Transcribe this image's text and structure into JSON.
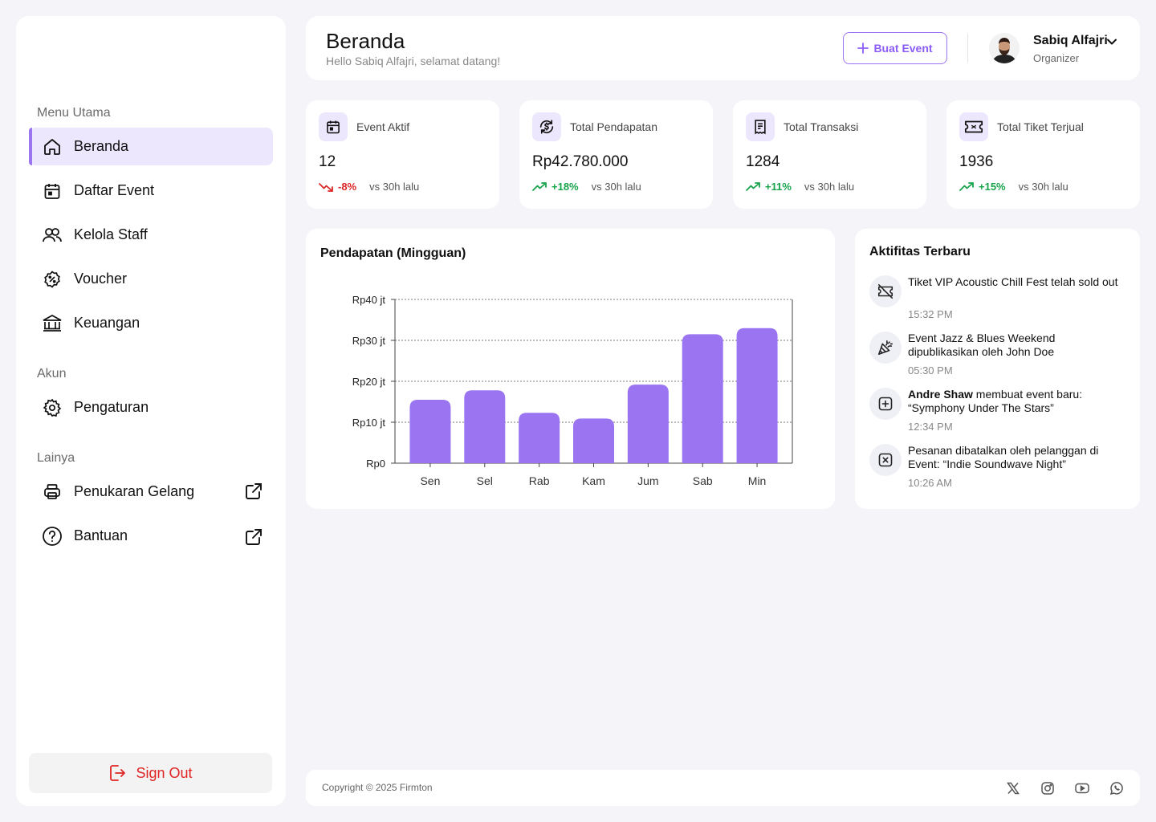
{
  "sidebar": {
    "sections": {
      "main": "Menu Utama",
      "account": "Akun",
      "other": "Lainya"
    },
    "items": [
      {
        "label": "Beranda",
        "icon": "home-icon",
        "active": true
      },
      {
        "label": "Daftar Event",
        "icon": "calendar-icon"
      },
      {
        "label": "Kelola Staff",
        "icon": "users-icon"
      },
      {
        "label": "Voucher",
        "icon": "discount-badge-icon"
      },
      {
        "label": "Keuangan",
        "icon": "bank-icon"
      },
      {
        "label": "Pengaturan",
        "icon": "gear-icon"
      },
      {
        "label": "Penukaran Gelang",
        "icon": "printer-icon",
        "external": true
      },
      {
        "label": "Bantuan",
        "icon": "help-circle-icon",
        "external": true
      }
    ],
    "signout": "Sign Out"
  },
  "header": {
    "title": "Beranda",
    "greeting": "Hello Sabiq Alfajri, selamat datang!",
    "create_label": "Buat Event",
    "user_name": "Sabiq Alfajri",
    "user_role": "Organizer"
  },
  "stats": [
    {
      "label": "Event Aktif",
      "value": "12",
      "change": "-8%",
      "direction": "down",
      "compare": "vs 30h lalu",
      "icon": "calendar-icon"
    },
    {
      "label": "Total Pendapatan",
      "value": "Rp42.780.000",
      "change": "+18%",
      "direction": "up",
      "compare": "vs 30h lalu",
      "icon": "money-cycle-icon"
    },
    {
      "label": "Total Transaksi",
      "value": "1284",
      "change": "+11%",
      "direction": "up",
      "compare": "vs 30h lalu",
      "icon": "receipt-icon"
    },
    {
      "label": "Total Tiket Terjual",
      "value": "1936",
      "change": "+15%",
      "direction": "up",
      "compare": "vs 30h lalu",
      "icon": "ticket-icon"
    }
  ],
  "chart_data": {
    "type": "bar",
    "title": "Pendapatan (Mingguan)",
    "categories": [
      "Sen",
      "Sel",
      "Rab",
      "Kam",
      "Jum",
      "Sab",
      "Min"
    ],
    "values": [
      15.5,
      17.8,
      12.3,
      10.9,
      19.2,
      31.5,
      33
    ],
    "yticks": [
      0,
      10,
      20,
      30,
      40
    ],
    "ytick_labels": [
      "Rp0",
      "Rp10 jt",
      "Rp20 jt",
      "Rp30 jt",
      "Rp40 jt"
    ],
    "ylim": [
      0,
      40
    ],
    "grid": true,
    "color": "#9b74f2"
  },
  "activity": {
    "title": "Aktifitas Terbaru",
    "items": [
      {
        "icon": "ticket-off-icon",
        "bold": "",
        "text": "Tiket VIP Acoustic Chill Fest telah sold out",
        "time": "15:32 PM"
      },
      {
        "icon": "party-popper-icon",
        "bold": "",
        "text": "Event Jazz & Blues Weekend dipublikasikan oleh John Doe",
        "time": "05:30 PM"
      },
      {
        "icon": "plus-square-icon",
        "bold": "Andre Shaw",
        "text": " membuat event baru: “Symphony Under The Stars”",
        "time": "12:34 PM"
      },
      {
        "icon": "x-square-icon",
        "bold": "",
        "text": "Pesanan dibatalkan oleh pelanggan di Event: “Indie Soundwave Night”",
        "time": "10:26 AM"
      }
    ]
  },
  "footer": {
    "copyright": "Copyright © 2025 Firmton",
    "social": [
      "x-icon",
      "instagram-icon",
      "youtube-icon",
      "whatsapp-icon"
    ]
  },
  "colors": {
    "accent": "#9b74f2",
    "up": "#16a34a",
    "down": "#dc2626",
    "signout": "#e02424"
  }
}
